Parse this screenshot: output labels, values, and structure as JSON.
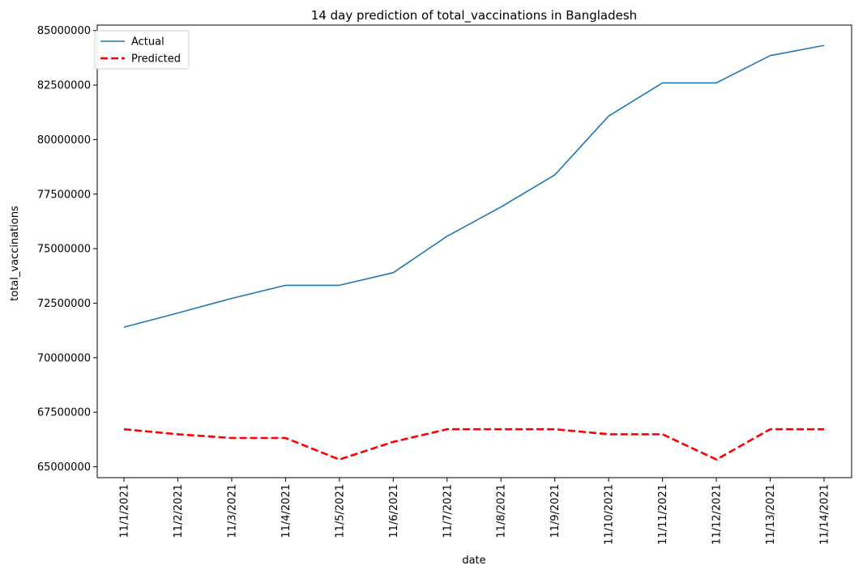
{
  "chart_data": {
    "type": "line",
    "title": "14 day prediction of total_vaccinations in Bangladesh",
    "xlabel": "date",
    "ylabel": "total_vaccinations",
    "x": [
      "11/1/2021",
      "11/2/2021",
      "11/3/2021",
      "11/4/2021",
      "11/5/2021",
      "11/6/2021",
      "11/7/2021",
      "11/8/2021",
      "11/9/2021",
      "11/10/2021",
      "11/11/2021",
      "11/12/2021",
      "11/13/2021",
      "11/14/2021"
    ],
    "yticks": [
      65000000,
      67500000,
      70000000,
      72500000,
      75000000,
      77500000,
      80000000,
      82500000,
      85000000
    ],
    "ylim": [
      64500000,
      85250000
    ],
    "grid": false,
    "legend": "top-left",
    "series": [
      {
        "name": "Actual",
        "color": "#1f77b4",
        "style": "solid",
        "values": [
          71400000,
          72050000,
          72720000,
          73320000,
          73320000,
          73900000,
          75570000,
          76910000,
          78380000,
          81080000,
          82600000,
          82600000,
          83850000,
          84320000
        ]
      },
      {
        "name": "Predicted",
        "color": "#ff0000",
        "style": "dashed",
        "values": [
          66720000,
          66490000,
          66320000,
          66320000,
          65330000,
          66140000,
          66720000,
          66720000,
          66720000,
          66490000,
          66490000,
          65330000,
          66720000,
          66720000
        ]
      }
    ]
  }
}
